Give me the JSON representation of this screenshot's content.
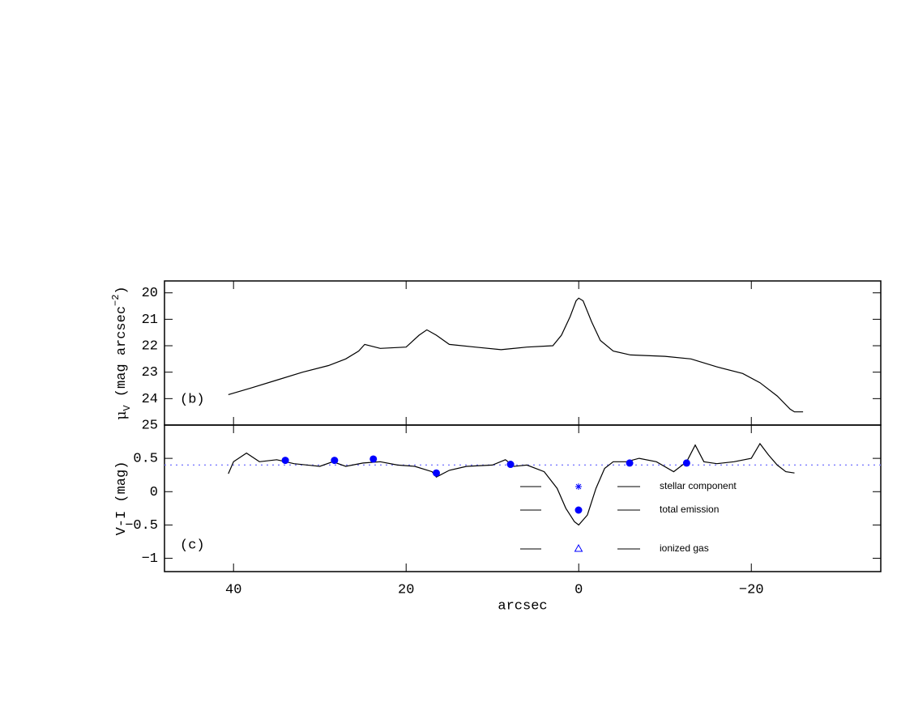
{
  "chart_data": [
    {
      "type": "line",
      "panel_label": "(b)",
      "y_label_parts": [
        "μ",
        "V",
        " (mag arcsec",
        "−2",
        ")"
      ],
      "xlim": [
        48,
        -35
      ],
      "xticks": [
        40,
        20,
        0,
        -20
      ],
      "ylim": [
        25,
        19.55
      ],
      "yticks": [
        20,
        21,
        22,
        23,
        24,
        25
      ],
      "series": [
        {
          "color": "#000000",
          "x": [
            40.6,
            38,
            35,
            32,
            29,
            27,
            25.5,
            24.8,
            23,
            20,
            18.5,
            17.6,
            16.5,
            15,
            12,
            9,
            6,
            3,
            2,
            1,
            0.3,
            0,
            -0.5,
            -1.5,
            -2.5,
            -4,
            -6,
            -10,
            -13,
            -16,
            -19,
            -21,
            -23,
            -24.5,
            -25,
            -26
          ],
          "values": [
            23.85,
            23.6,
            23.3,
            23.0,
            22.75,
            22.5,
            22.2,
            21.95,
            22.1,
            22.05,
            21.6,
            21.4,
            21.6,
            21.95,
            22.05,
            22.15,
            22.05,
            22.0,
            21.6,
            20.9,
            20.3,
            20.2,
            20.3,
            21.1,
            21.8,
            22.2,
            22.35,
            22.4,
            22.5,
            22.8,
            23.05,
            23.4,
            23.9,
            24.4,
            24.5,
            24.5
          ]
        }
      ]
    },
    {
      "type": "line",
      "panel_label": "(c)",
      "x_label": "arcsec",
      "y_label_parts": [
        "V-I (mag)"
      ],
      "xlim": [
        48,
        -35
      ],
      "xticks": [
        40,
        20,
        0,
        {
          "value": -20,
          "label": "−20"
        }
      ],
      "ylim": [
        -1.2,
        1.0
      ],
      "yticks": [
        {
          "value": -1,
          "label": "−1"
        },
        {
          "value": -0.5,
          "label": "−0.5"
        },
        0,
        0.5
      ],
      "hline": 0.4,
      "hline_color": "#8080ff",
      "series": [
        {
          "color": "#000000",
          "x": [
            40.6,
            40,
            38.5,
            37,
            35,
            33,
            30,
            28.5,
            27,
            25,
            23,
            21,
            19,
            17,
            16.5,
            15,
            13,
            10,
            8.5,
            7.5,
            6,
            4,
            2.5,
            1.5,
            0.5,
            0,
            -1,
            -2,
            -3,
            -4,
            -5.5,
            -7,
            -9,
            -11,
            -12.5,
            -13.5,
            -14.5,
            -16,
            -18,
            -20,
            -21,
            -22,
            -23,
            -24,
            -25
          ],
          "values": [
            0.27,
            0.45,
            0.58,
            0.45,
            0.48,
            0.42,
            0.38,
            0.45,
            0.38,
            0.43,
            0.45,
            0.4,
            0.38,
            0.3,
            0.22,
            0.32,
            0.38,
            0.4,
            0.48,
            0.38,
            0.4,
            0.3,
            0.05,
            -0.25,
            -0.45,
            -0.5,
            -0.35,
            0.05,
            0.35,
            0.45,
            0.45,
            0.5,
            0.45,
            0.3,
            0.45,
            0.7,
            0.45,
            0.42,
            0.45,
            0.5,
            0.72,
            0.55,
            0.4,
            0.3,
            0.28
          ]
        }
      ],
      "markers": {
        "color": "#0000ff",
        "x": [
          34.0,
          28.3,
          23.8,
          16.5,
          7.9,
          -5.9,
          -12.5
        ],
        "values": [
          0.47,
          0.47,
          0.49,
          0.28,
          0.41,
          0.43,
          0.43
        ]
      },
      "legend": {
        "entries": [
          "stellar component",
          "total emission",
          "ionized gas"
        ]
      }
    }
  ]
}
